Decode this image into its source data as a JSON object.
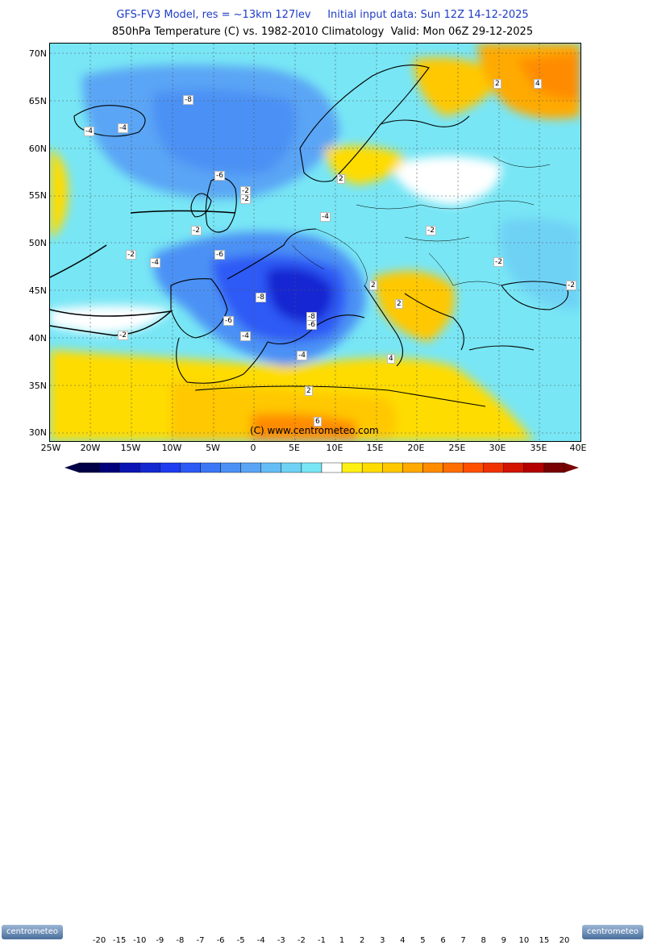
{
  "header": {
    "line1": "GFS-FV3 Model, res = ~13km 127lev     Initial input data: Sun 12Z 14-12-2025",
    "line2": "850hPa Temperature (C) vs. 1982-2010 Climatology  Valid: Mon 06Z 29-12-2025"
  },
  "map": {
    "lat_labels": [
      "70N",
      "65N",
      "60N",
      "55N",
      "50N",
      "45N",
      "40N",
      "35N",
      "30N"
    ],
    "lon_labels": [
      "25W",
      "20W",
      "15W",
      "10W",
      "5W",
      "0",
      "5E",
      "10E",
      "15E",
      "20E",
      "25E",
      "30E",
      "35E",
      "40E"
    ],
    "contour_labels": [
      "-4",
      "-4",
      "-8",
      "-6",
      "-2",
      "-2",
      "-4",
      "-2",
      "-2",
      "-4",
      "-6",
      "-2",
      "-2",
      "-8",
      "-8",
      "-6",
      "-6",
      "-4",
      "-4",
      "-2",
      "-2",
      "2",
      "2",
      "4",
      "2",
      "2",
      "2",
      "4",
      "6"
    ],
    "copyright": "(C) www.centrometeo.com"
  },
  "colorbar": {
    "labels": [
      "-20",
      "-15",
      "-10",
      "-9",
      "-8",
      "-7",
      "-6",
      "-5",
      "-4",
      "-3",
      "-2",
      "-1",
      "1",
      "2",
      "3",
      "4",
      "5",
      "6",
      "7",
      "8",
      "9",
      "10",
      "15",
      "20"
    ],
    "colors": [
      "#000046",
      "#00007a",
      "#0a14b4",
      "#1428d2",
      "#1e3cf0",
      "#2d5af5",
      "#3c78f5",
      "#4b91f5",
      "#5aa5f5",
      "#64bef5",
      "#6ed2f5",
      "#78e6f5",
      "#ffffff",
      "#fff014",
      "#ffdc00",
      "#ffc800",
      "#ffaa00",
      "#ff8c00",
      "#ff6e00",
      "#ff5000",
      "#f03200",
      "#d21400",
      "#b40000",
      "#780000"
    ]
  },
  "logos": {
    "left": "centrometeo",
    "right": "centrometeo"
  }
}
